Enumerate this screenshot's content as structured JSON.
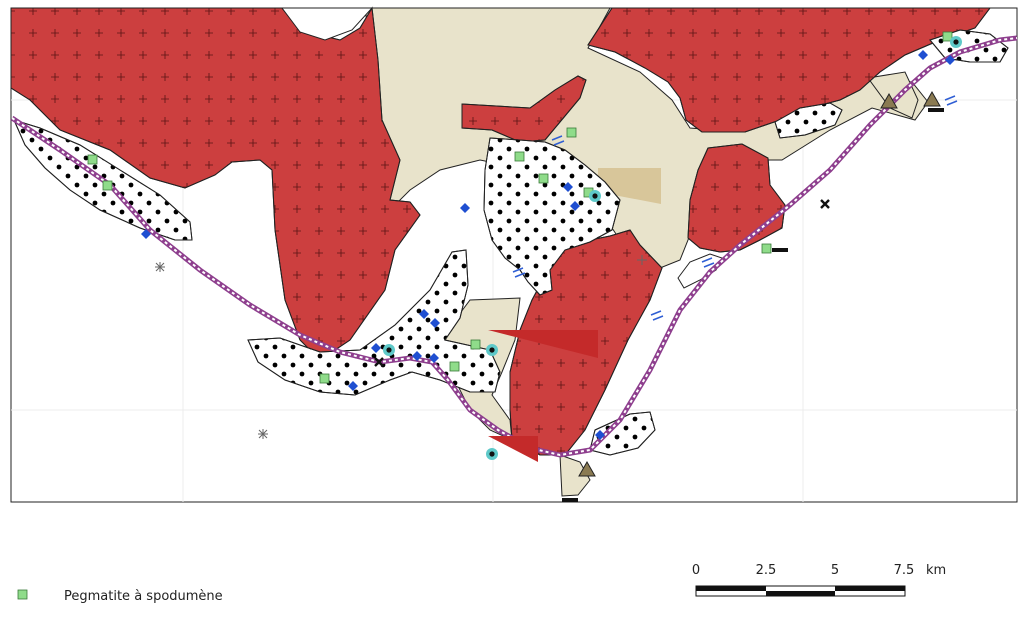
{
  "legend": {
    "items": [
      {
        "symbol": "green-square",
        "color": "#8fdc8a",
        "label": "Pegmatite à spodumène"
      }
    ]
  },
  "scale_bar": {
    "ticks": [
      "0",
      "2.5",
      "5",
      "7.5"
    ],
    "unit": "km"
  },
  "colors": {
    "granite": "#cc3f3f",
    "sediment": "#e8e3cb",
    "tan_block": "#d8c69a",
    "schist": "#ffffff",
    "route": "#8e3f8e",
    "diamond": "#1f4fd1",
    "triangle": "#8a7a52",
    "circle": "#5ec9c9"
  }
}
